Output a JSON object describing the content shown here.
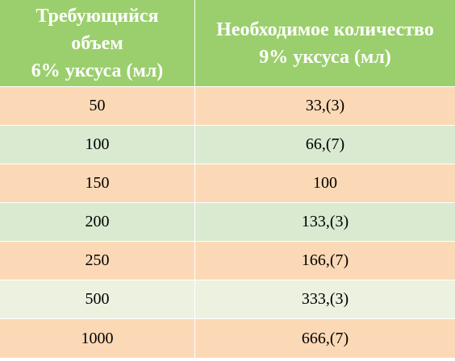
{
  "header": {
    "col1": "Требующийся\nобъем\n6% уксуса (мл)",
    "col2": "Необходимое количество\n9% уксуса (мл)"
  },
  "rows": [
    {
      "a": "50",
      "b": "33,(3)",
      "bg": "#fcd9b6"
    },
    {
      "a": "100",
      "b": "66,(7)",
      "bg": "#d9ead0"
    },
    {
      "a": "150",
      "b": "100",
      "bg": "#fcd9b6"
    },
    {
      "a": "200",
      "b": "133,(3)",
      "bg": "#d9ead0"
    },
    {
      "a": "250",
      "b": "166,(7)",
      "bg": "#fcd9b6"
    },
    {
      "a": "500",
      "b": "333,(3)",
      "bg": "#edf1df"
    },
    {
      "a": "1000",
      "b": "666,(7)",
      "bg": "#fcd9b6"
    }
  ]
}
